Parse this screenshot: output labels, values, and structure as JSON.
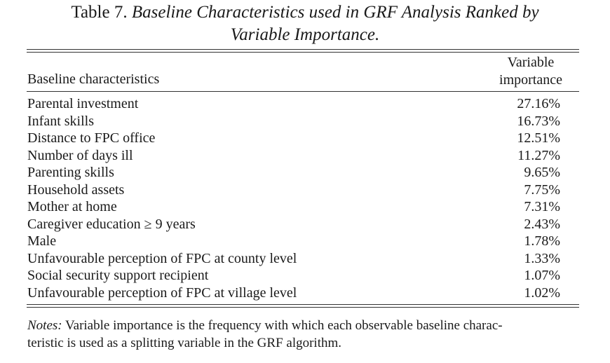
{
  "caption": {
    "label": "Table 7.",
    "title_line1": "Baseline Characteristics used in GRF Analysis Ranked by",
    "title_line2": "Variable Importance."
  },
  "header": {
    "col1": "Baseline characteristics",
    "col2_line1": "Variable",
    "col2_line2": "importance"
  },
  "rows": [
    {
      "name": "Parental investment",
      "value": "27.16%"
    },
    {
      "name": "Infant skills",
      "value": "16.73%"
    },
    {
      "name": "Distance to FPC office",
      "value": "12.51%"
    },
    {
      "name": "Number of days ill",
      "value": "11.27%"
    },
    {
      "name": "Parenting skills",
      "value": "9.65%"
    },
    {
      "name": "Household assets",
      "value": "7.75%"
    },
    {
      "name": "Mother at home",
      "value": "7.31%"
    },
    {
      "name": "Caregiver education ≥ 9 years",
      "value": "2.43%"
    },
    {
      "name": "Male",
      "value": "1.78%"
    },
    {
      "name": "Unfavourable perception of FPC at county level",
      "value": "1.33%"
    },
    {
      "name": "Social security support recipient",
      "value": "1.07%"
    },
    {
      "name": "Unfavourable perception of FPC at village level",
      "value": "1.02%"
    }
  ],
  "notes": {
    "label": "Notes:",
    "line1": "Variable importance is the frequency with which each observable baseline charac-",
    "line2": "teristic is used as a splitting variable in the GRF algorithm."
  }
}
